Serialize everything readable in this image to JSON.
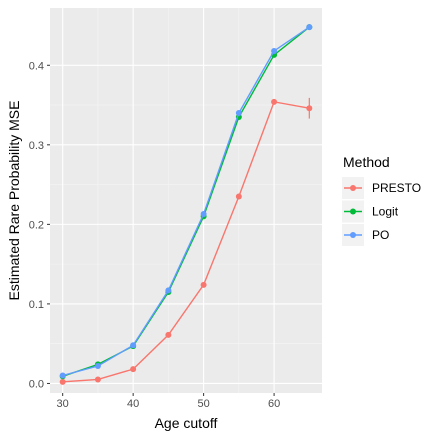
{
  "chart_data": {
    "type": "line",
    "xlabel": "Age cutoff",
    "ylabel": "Estimated Rare Probability MSE",
    "xlim": [
      28.2,
      66.8
    ],
    "ylim": [
      -0.012,
      0.472
    ],
    "x_ticks": [
      30,
      40,
      50,
      60
    ],
    "x_tick_labels": [
      "30",
      "40",
      "50",
      "60"
    ],
    "y_ticks": [
      0.0,
      0.1,
      0.2,
      0.3,
      0.4
    ],
    "y_tick_labels": [
      "0.0",
      "0.1",
      "0.2",
      "0.3",
      "0.4"
    ],
    "grid": true,
    "background": "#ebebeb",
    "legend": {
      "title": "Method",
      "placement": "right"
    },
    "series": [
      {
        "name": "PRESTO",
        "color": "#F8766D",
        "x": [
          30,
          35,
          40,
          45,
          50,
          55,
          60,
          65
        ],
        "y": [
          0.002,
          0.005,
          0.018,
          0.061,
          0.124,
          0.235,
          0.354,
          0.346
        ],
        "error": [
          0.0,
          0.0,
          0.0,
          0.0,
          0.0,
          0.0,
          0.0,
          0.013
        ]
      },
      {
        "name": "Logit",
        "color": "#00BA38",
        "x": [
          30,
          35,
          40,
          45,
          50,
          55,
          60,
          65
        ],
        "y": [
          0.009,
          0.024,
          0.047,
          0.115,
          0.21,
          0.335,
          0.413,
          0.448
        ],
        "error": [
          0,
          0,
          0,
          0,
          0,
          0,
          0,
          0
        ]
      },
      {
        "name": "PO",
        "color": "#619CFF",
        "x": [
          30,
          35,
          40,
          45,
          50,
          55,
          60,
          65
        ],
        "y": [
          0.01,
          0.022,
          0.048,
          0.117,
          0.213,
          0.34,
          0.418,
          0.448
        ],
        "error": [
          0,
          0,
          0,
          0,
          0,
          0,
          0,
          0
        ]
      }
    ]
  }
}
